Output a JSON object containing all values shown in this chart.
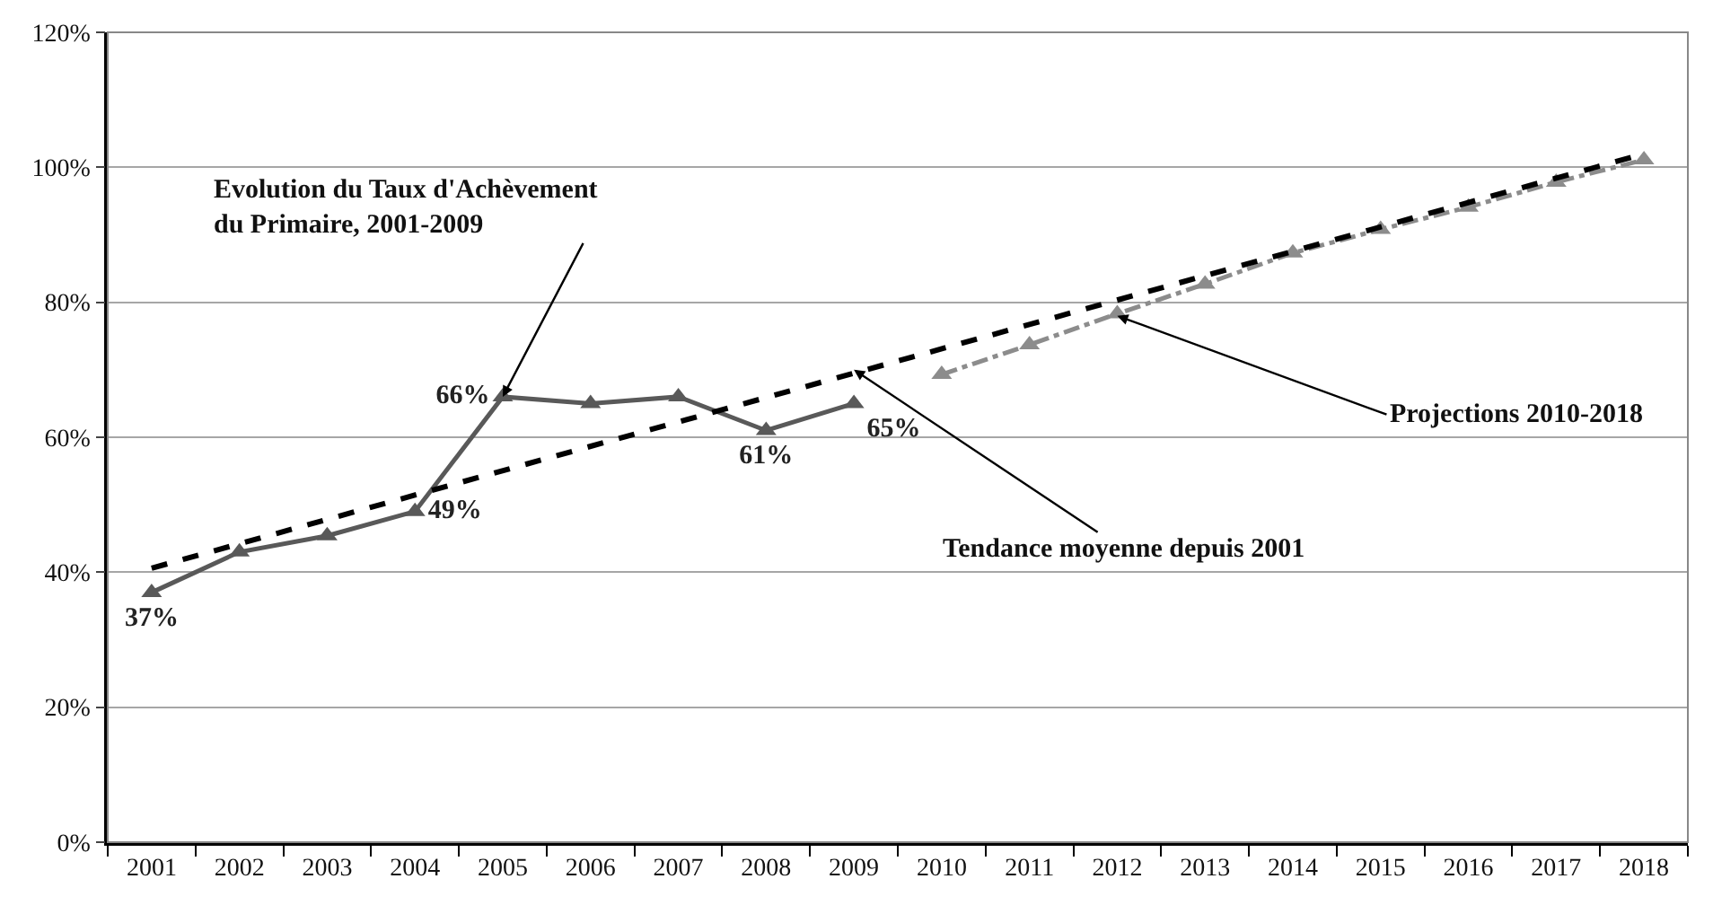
{
  "chart_data": {
    "type": "line",
    "categories": [
      "2001",
      "2002",
      "2003",
      "2004",
      "2005",
      "2006",
      "2007",
      "2008",
      "2009",
      "2010",
      "2011",
      "2012",
      "2013",
      "2014",
      "2015",
      "2016",
      "2017",
      "2018"
    ],
    "series": [
      {
        "color": "#595959",
        "marker": "triangle",
        "line_style": "solid",
        "values": [
          37,
          43,
          45.4,
          49,
          66,
          65,
          66,
          61,
          65,
          null,
          null,
          null,
          null,
          null,
          null,
          null,
          null,
          null
        ],
        "value_labels": [
          "37%",
          null,
          null,
          "49%",
          "66%",
          null,
          null,
          "61%",
          "65%",
          null,
          null,
          null,
          null,
          null,
          null,
          null,
          null,
          null
        ]
      },
      {
        "color": "#8c8c8c",
        "marker": "triangle",
        "line_style": "dashdot",
        "values": [
          null,
          null,
          null,
          null,
          null,
          null,
          null,
          null,
          null,
          69.3,
          73.7,
          78.3,
          82.7,
          87.3,
          90.8,
          94.1,
          97.8,
          101.1
        ]
      },
      {
        "color": "#000000",
        "marker": "none",
        "line_style": "dashed",
        "values": [
          40.6,
          null,
          null,
          null,
          null,
          null,
          null,
          null,
          null,
          null,
          null,
          null,
          null,
          null,
          null,
          null,
          null,
          102
        ]
      }
    ],
    "ylim": [
      0,
      120
    ],
    "yticks": [
      {
        "value": 0,
        "label": "0%"
      },
      {
        "value": 20,
        "label": "20%"
      },
      {
        "value": 40,
        "label": "40%"
      },
      {
        "value": 60,
        "label": "60%"
      },
      {
        "value": 80,
        "label": "80%"
      },
      {
        "value": 100,
        "label": "100%"
      },
      {
        "value": 120,
        "label": "120%"
      }
    ],
    "grid": "y",
    "annotations": [
      {
        "text": "Evolution du Taux d'Achèvement\ndu Primaire, 2001-2009",
        "x": "2005",
        "y": 66
      },
      {
        "text": "Tendance moyenne depuis 2001",
        "x": "2009",
        "y": 70
      },
      {
        "text": "Projections 2010-2018",
        "x": "2012",
        "y": 78
      }
    ]
  }
}
